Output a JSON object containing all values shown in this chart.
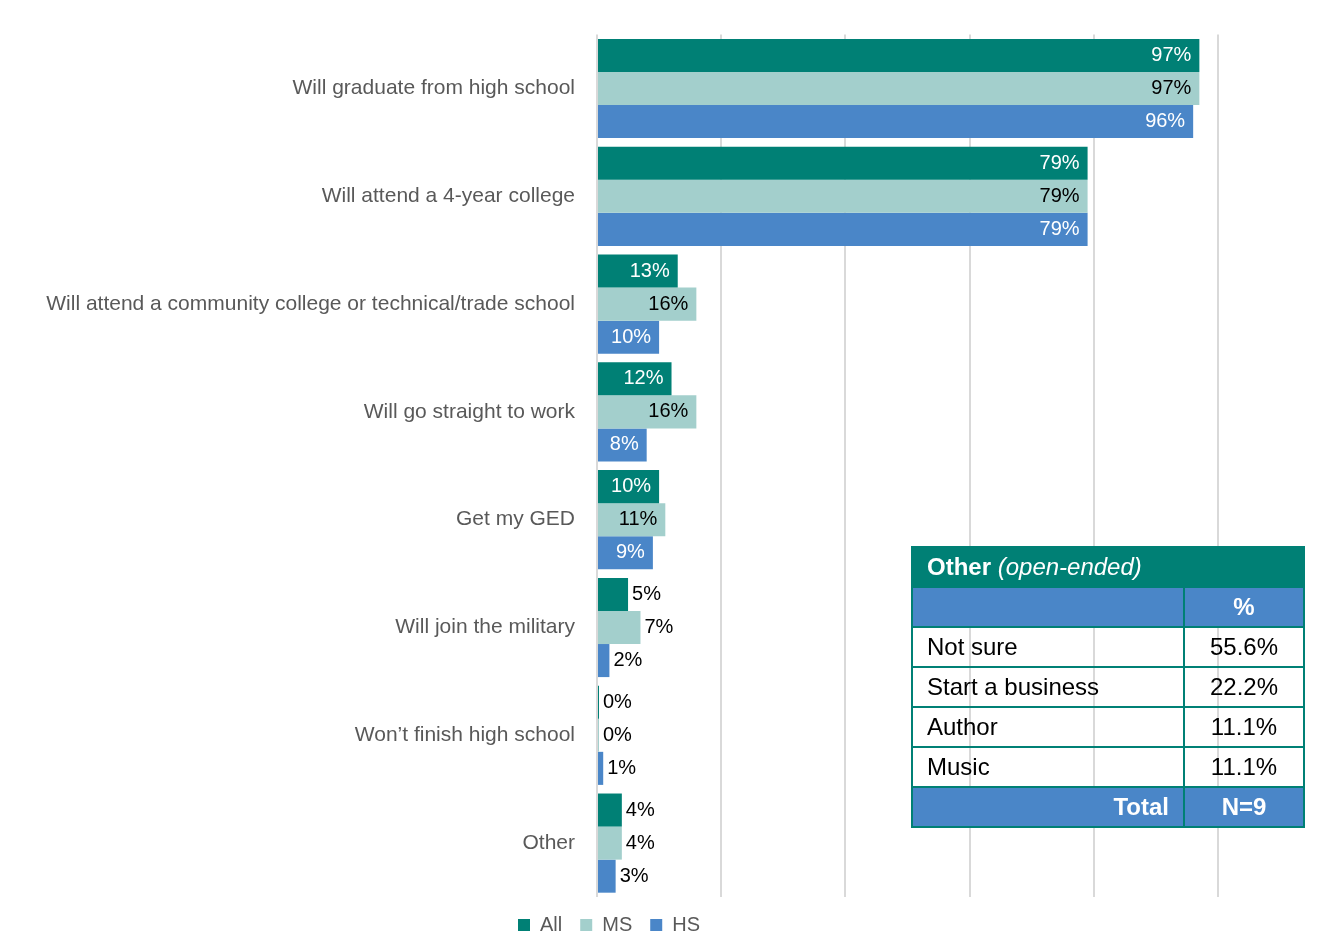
{
  "chart_data": [
    {
      "type": "bar",
      "orientation": "horizontal",
      "categories": [
        "Will graduate from high school",
        "Will attend a 4-year college",
        "Will attend a community college or technical/trade school",
        "Will go straight to work",
        "Get my GED",
        "Will join the military",
        "Won’t finish high school",
        "Other"
      ],
      "series": [
        {
          "name": "All",
          "color": "#008075",
          "values": [
            97,
            79,
            13,
            12,
            10,
            5,
            0,
            4
          ],
          "value_labels": [
            "97%",
            "79%",
            "13%",
            "12%",
            "10%",
            "5%",
            "0%",
            "4%"
          ]
        },
        {
          "name": "MS",
          "color": "#a3cfcc",
          "values": [
            97,
            79,
            16,
            16,
            11,
            7,
            0,
            4
          ],
          "value_labels": [
            "97%",
            "79%",
            "16%",
            "16%",
            "11%",
            "7%",
            "0%",
            "4%"
          ]
        },
        {
          "name": "HS",
          "color": "#4a86c8",
          "values": [
            96,
            79,
            10,
            8,
            9,
            2,
            1,
            3
          ],
          "value_labels": [
            "96%",
            "79%",
            "10%",
            "8%",
            "9%",
            "2%",
            "1%",
            "3%"
          ]
        }
      ],
      "xlim": [
        0,
        100
      ],
      "xticks": [
        {
          "value": 0,
          "label": null
        },
        {
          "value": 20,
          "label": null
        },
        {
          "value": 40,
          "label": null
        },
        {
          "value": 60,
          "label": null
        },
        {
          "value": 80,
          "label": null
        },
        {
          "value": 100,
          "label": null
        }
      ],
      "tick_labels": "y",
      "grid": "x",
      "legend": "bottom"
    },
    {
      "type": "other",
      "title": "Other",
      "subtitle": "(open-ended)",
      "annotations": [
        "%",
        "Not sure",
        "55.6%",
        "Start a business",
        "22.2%",
        "Author",
        "11.1%",
        "Music",
        "11.1%",
        "Total",
        "N=9"
      ]
    }
  ]
}
